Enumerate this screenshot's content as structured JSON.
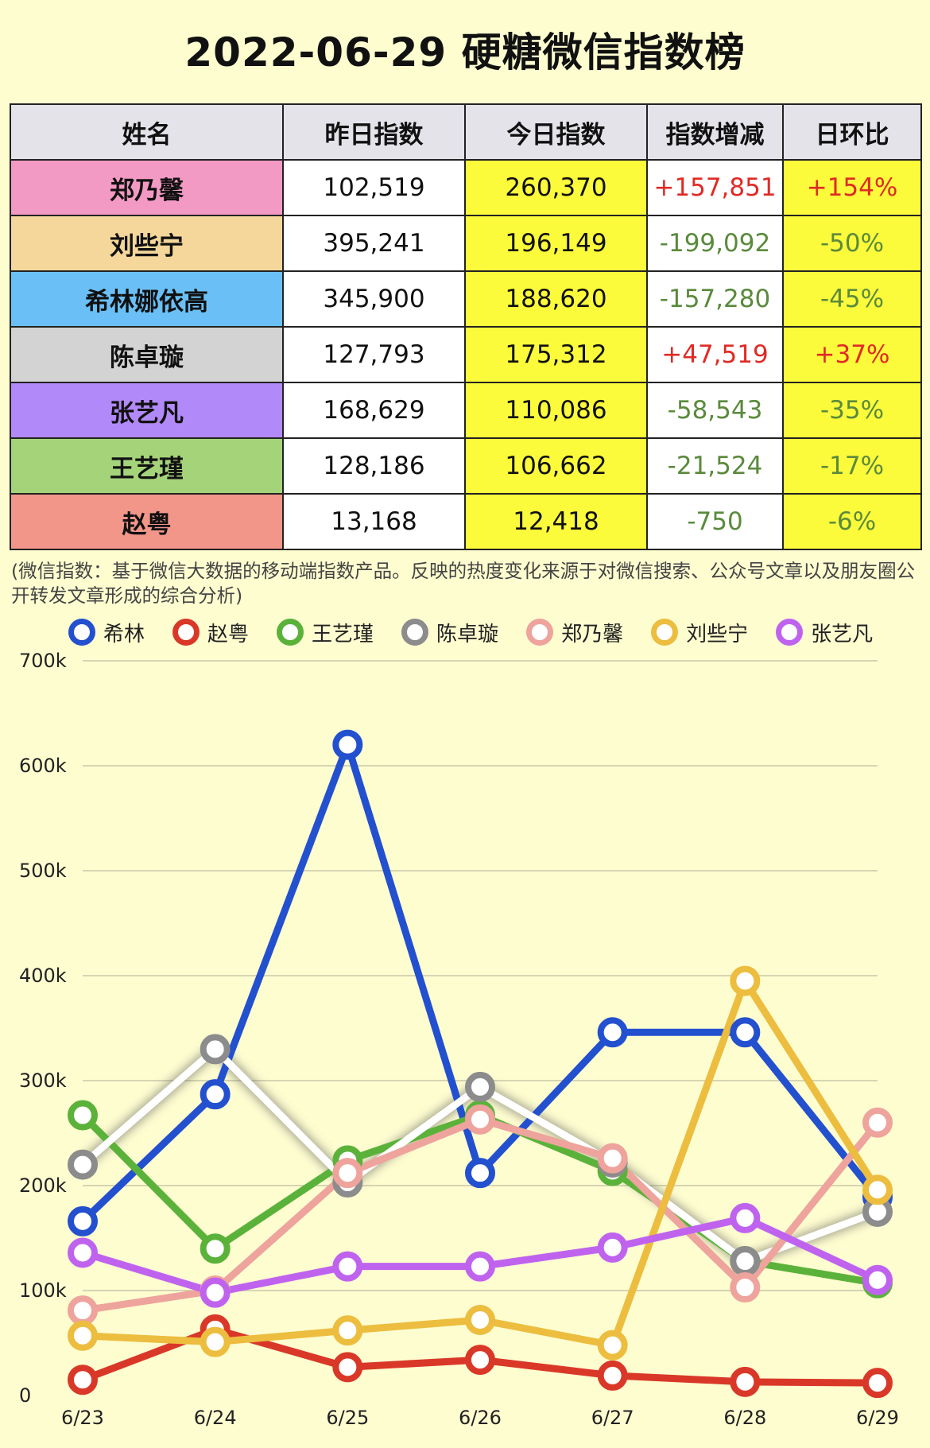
{
  "title": "2022-06-29 硬糖微信指数榜",
  "table": {
    "headers": [
      "姓名",
      "昨日指数",
      "今日指数",
      "指数增减",
      "日环比"
    ],
    "rows": [
      {
        "name": "郑乃馨",
        "color": "#f29ac3",
        "yesterday": "102,519",
        "today": "260,370",
        "delta": "+157,851",
        "ratio": "+154%",
        "dir": "up"
      },
      {
        "name": "刘些宁",
        "color": "#f5d79b",
        "yesterday": "395,241",
        "today": "196,149",
        "delta": "-199,092",
        "ratio": "-50%",
        "dir": "down"
      },
      {
        "name": "希林娜依高",
        "color": "#6ac0f6",
        "yesterday": "345,900",
        "today": "188,620",
        "delta": "-157,280",
        "ratio": "-45%",
        "dir": "down"
      },
      {
        "name": "陈卓璇",
        "color": "#d3d3d3",
        "yesterday": "127,793",
        "today": "175,312",
        "delta": "+47,519",
        "ratio": "+37%",
        "dir": "up"
      },
      {
        "name": "张艺凡",
        "color": "#b289f8",
        "yesterday": "168,629",
        "today": "110,086",
        "delta": "-58,543",
        "ratio": "-35%",
        "dir": "down"
      },
      {
        "name": "王艺瑾",
        "color": "#a5d37a",
        "yesterday": "128,186",
        "today": "106,662",
        "delta": "-21,524",
        "ratio": "-17%",
        "dir": "down"
      },
      {
        "name": "赵粤",
        "color": "#f2968a",
        "yesterday": "13,168",
        "today": "12,418",
        "delta": "-750",
        "ratio": "-6%",
        "dir": "down"
      }
    ]
  },
  "note": "(微信指数：基于微信大数据的移动端指数产品。反映的热度变化来源于对微信搜索、公众号文章以及朋友圈公开转发文章形成的综合分析)",
  "colors": {
    "up": "#e02a25",
    "down": "#5a8a3c"
  },
  "chart_data": {
    "type": "line",
    "x": [
      "6/23",
      "6/24",
      "6/25",
      "6/26",
      "6/27",
      "6/28",
      "6/29"
    ],
    "ylim": [
      0,
      700000
    ],
    "yticks": [
      0,
      100000,
      200000,
      300000,
      400000,
      500000,
      600000,
      700000
    ],
    "ytick_labels": [
      "0",
      "100k",
      "200k",
      "300k",
      "400k",
      "500k",
      "600k",
      "700k"
    ],
    "grid": true,
    "legend_position": "top",
    "series": [
      {
        "name": "希林",
        "color": "#2350cf",
        "values": [
          166000,
          287000,
          620000,
          212000,
          346000,
          346000,
          189000
        ]
      },
      {
        "name": "赵粤",
        "color": "#d93828",
        "values": [
          15000,
          63000,
          27000,
          34000,
          19000,
          13000,
          12000
        ]
      },
      {
        "name": "王艺瑾",
        "color": "#5bb23a",
        "values": [
          267000,
          140000,
          224000,
          267000,
          214000,
          128000,
          107000
        ]
      },
      {
        "name": "陈卓璇",
        "color": "#8c8c8c",
        "values": [
          220000,
          330000,
          203000,
          294000,
          222000,
          128000,
          175000
        ]
      },
      {
        "name": "郑乃馨",
        "color": "#eea39c",
        "values": [
          81000,
          100000,
          212000,
          263000,
          226000,
          103000,
          260000
        ]
      },
      {
        "name": "刘些宁",
        "color": "#ecbd3e",
        "values": [
          57000,
          51000,
          62000,
          72000,
          48000,
          395000,
          196000
        ]
      },
      {
        "name": "张艺凡",
        "color": "#bf63ef",
        "values": [
          136000,
          98000,
          123000,
          123000,
          141000,
          169000,
          110000
        ]
      }
    ]
  }
}
